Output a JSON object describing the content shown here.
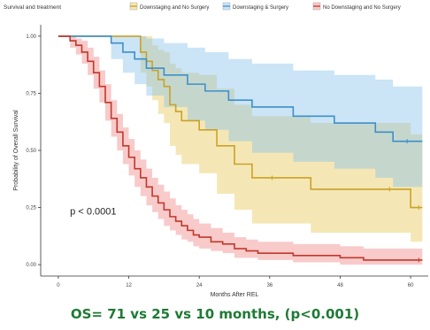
{
  "chart_data": {
    "type": "line",
    "title": "",
    "xlabel": "Months After REL",
    "ylabel": "Probability of Overall Survival",
    "xlim": [
      -3,
      63
    ],
    "ylim": [
      -0.05,
      1.05
    ],
    "x_ticks": [
      "0",
      "12",
      "24",
      "36",
      "48",
      "60"
    ],
    "x_tick_values": [
      0,
      12,
      24,
      36,
      48,
      60
    ],
    "y_ticks": [
      "0.00",
      "0.25",
      "0.50",
      "0.75",
      "1.00"
    ],
    "y_tick_values": [
      0,
      0.25,
      0.5,
      0.75,
      1.0
    ],
    "grid": false,
    "step": true,
    "confidence_bands": true,
    "legend": {
      "title": "Survival and treatment",
      "placement": "top",
      "entries": [
        "Downstaging and No Surgery",
        "Downstaging & Surgery",
        "No Downstaging and No Surgery"
      ]
    },
    "annotation": "p < 0.0001",
    "series": [
      {
        "name": "Downstaging and No Surgery",
        "color": "#c9a227",
        "band_color": "#e8c95a",
        "x": [
          0,
          13,
          14,
          15,
          16,
          17,
          18,
          19,
          20,
          21,
          24,
          27,
          30,
          33,
          37,
          43,
          57,
          60,
          62
        ],
        "y": [
          1.0,
          1.0,
          0.93,
          0.89,
          0.85,
          0.81,
          0.78,
          0.7,
          0.67,
          0.63,
          0.59,
          0.52,
          0.44,
          0.38,
          0.38,
          0.33,
          0.33,
          0.25,
          0.25
        ],
        "lower": [
          1.0,
          1.0,
          0.84,
          0.78,
          0.72,
          0.66,
          0.62,
          0.52,
          0.48,
          0.44,
          0.4,
          0.31,
          0.24,
          0.18,
          0.18,
          0.14,
          0.14,
          0.1,
          0.1
        ],
        "upper": [
          1.0,
          1.0,
          1.0,
          1.0,
          0.96,
          0.94,
          0.93,
          0.88,
          0.86,
          0.84,
          0.83,
          0.77,
          0.7,
          0.65,
          0.65,
          0.62,
          0.62,
          0.57,
          0.57
        ]
      },
      {
        "name": "Downstaging & Surgery",
        "color": "#3d8fcb",
        "band_color": "#8cc3ea",
        "x": [
          0,
          7,
          9,
          11,
          13,
          15,
          18,
          22,
          25,
          29,
          33,
          37,
          40,
          44,
          47,
          50,
          54,
          57,
          60,
          62
        ],
        "y": [
          1.0,
          1.0,
          0.97,
          0.93,
          0.9,
          0.86,
          0.83,
          0.79,
          0.76,
          0.72,
          0.69,
          0.69,
          0.65,
          0.65,
          0.62,
          0.62,
          0.58,
          0.54,
          0.54,
          0.54
        ],
        "lower": [
          1.0,
          1.0,
          0.9,
          0.84,
          0.79,
          0.74,
          0.69,
          0.63,
          0.59,
          0.54,
          0.49,
          0.49,
          0.45,
          0.45,
          0.42,
          0.42,
          0.38,
          0.34,
          0.34,
          0.34
        ],
        "upper": [
          1.0,
          1.0,
          1.0,
          1.0,
          1.0,
          0.99,
          0.97,
          0.95,
          0.93,
          0.9,
          0.88,
          0.88,
          0.85,
          0.85,
          0.83,
          0.83,
          0.81,
          0.78,
          0.78,
          0.78
        ]
      },
      {
        "name": "No Downstaging and No Surgery",
        "color": "#c0392b",
        "band_color": "#f08a8a",
        "x": [
          0,
          2,
          3,
          4,
          5,
          6,
          7,
          8,
          9,
          10,
          11,
          12,
          13,
          14,
          15,
          16,
          17,
          18,
          19,
          20,
          21,
          22,
          23,
          24,
          26,
          28,
          30,
          32,
          34,
          37,
          40,
          44,
          48,
          52,
          62
        ],
        "y": [
          1.0,
          0.98,
          0.96,
          0.93,
          0.89,
          0.84,
          0.78,
          0.71,
          0.64,
          0.58,
          0.52,
          0.47,
          0.42,
          0.38,
          0.34,
          0.3,
          0.27,
          0.24,
          0.21,
          0.19,
          0.17,
          0.15,
          0.13,
          0.12,
          0.1,
          0.09,
          0.07,
          0.06,
          0.05,
          0.05,
          0.04,
          0.04,
          0.03,
          0.02,
          0.02
        ],
        "lower": [
          1.0,
          0.95,
          0.92,
          0.88,
          0.83,
          0.77,
          0.71,
          0.63,
          0.56,
          0.5,
          0.44,
          0.39,
          0.34,
          0.3,
          0.26,
          0.23,
          0.2,
          0.17,
          0.15,
          0.13,
          0.11,
          0.1,
          0.08,
          0.07,
          0.06,
          0.05,
          0.03,
          0.03,
          0.02,
          0.02,
          0.01,
          0.01,
          0.0,
          0.0,
          0.0
        ],
        "upper": [
          1.0,
          1.0,
          0.99,
          0.98,
          0.95,
          0.91,
          0.85,
          0.79,
          0.72,
          0.66,
          0.6,
          0.55,
          0.5,
          0.46,
          0.42,
          0.38,
          0.35,
          0.32,
          0.29,
          0.26,
          0.24,
          0.22,
          0.2,
          0.18,
          0.16,
          0.14,
          0.12,
          0.11,
          0.1,
          0.1,
          0.09,
          0.09,
          0.08,
          0.07,
          0.07
        ]
      }
    ]
  },
  "caption": {
    "text": "OS= 71 vs 25 vs 10 months, (p<0.001)",
    "color": "#1f7a35"
  }
}
